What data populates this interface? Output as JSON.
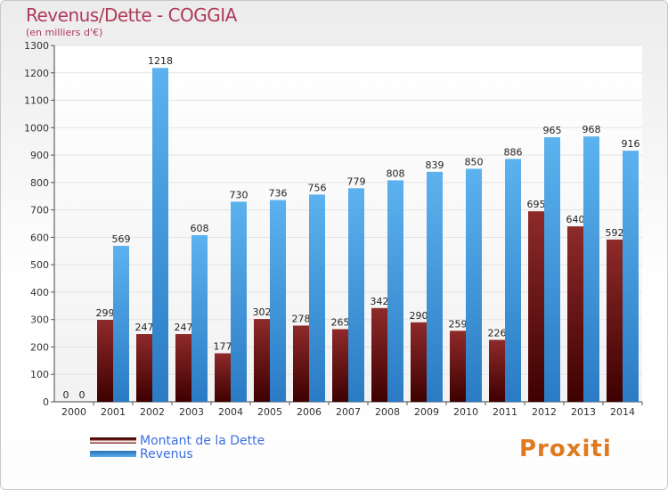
{
  "chart_data": {
    "type": "bar",
    "title": "Revenus/Dette - COGGIA",
    "subtitle": "(en milliers d'€)",
    "categories": [
      "2000",
      "2001",
      "2002",
      "2003",
      "2004",
      "2005",
      "2006",
      "2007",
      "2008",
      "2009",
      "2010",
      "2011",
      "2012",
      "2013",
      "2014"
    ],
    "series": [
      {
        "name": "Montant de la Dette",
        "color": "#7a1a1a",
        "values": [
          0,
          299,
          247,
          247,
          177,
          302,
          278,
          265,
          342,
          290,
          259,
          226,
          695,
          640,
          592
        ]
      },
      {
        "name": "Revenus",
        "color": "#3a95dc",
        "values": [
          0,
          569,
          1218,
          608,
          730,
          736,
          756,
          779,
          808,
          839,
          850,
          886,
          965,
          968,
          916
        ]
      }
    ],
    "ylim": [
      0,
      1300
    ],
    "yticks": [
      0,
      100,
      200,
      300,
      400,
      500,
      600,
      700,
      800,
      900,
      1000,
      1100,
      1200,
      1300
    ],
    "grid": true,
    "legend_position": "bottom-left"
  },
  "brand": "Proxiti"
}
